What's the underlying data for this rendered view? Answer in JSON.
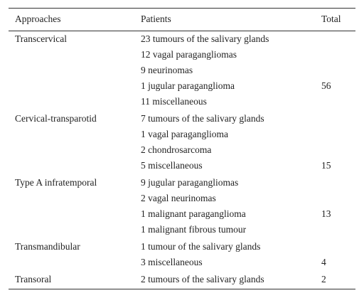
{
  "table": {
    "header": [
      "Approaches",
      "Patients",
      "Total"
    ],
    "rows": [
      {
        "approach": "Transcervical",
        "patients": [
          "23 tumours of the salivary glands",
          "12 vagal paragangliomas",
          "9 neurinomas",
          "1 jugular paraganglioma",
          "11 miscellaneous"
        ],
        "total": "56"
      },
      {
        "approach": "Cervical-transparotid",
        "patients": [
          "7 tumours of the salivary glands",
          "1 vagal paraganglioma",
          "2 chondrosarcoma",
          "5 miscellaneous"
        ],
        "total": "15"
      },
      {
        "approach": "Type A infratemporal",
        "patients": [
          "9 jugular paragangliomas",
          "2 vagal neurinomas",
          "1 malignant paraganglioma",
          "1 malignant fibrous tumour"
        ],
        "total": "13"
      },
      {
        "approach": "Transmandibular",
        "patients": [
          "1 tumour of the salivary glands",
          "3 miscellaneous"
        ],
        "total": "4"
      },
      {
        "approach": "Transoral",
        "patients": [
          "2 tumours of the salivary glands"
        ],
        "total": "2"
      }
    ]
  }
}
